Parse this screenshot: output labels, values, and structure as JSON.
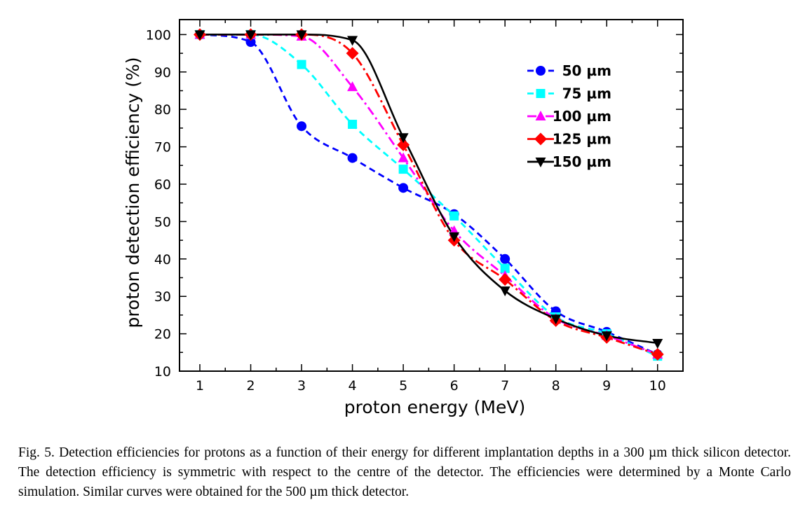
{
  "chart_data": {
    "type": "line",
    "xlabel": "proton energy (MeV)",
    "ylabel": "proton detection efficiency (%)",
    "xlim": [
      0.6,
      10.5
    ],
    "ylim": [
      10,
      104
    ],
    "x_ticks": [
      1,
      2,
      3,
      4,
      5,
      6,
      7,
      8,
      9,
      10
    ],
    "y_ticks": [
      10,
      20,
      30,
      40,
      50,
      60,
      70,
      80,
      90,
      100
    ],
    "legend_position": "top-right",
    "grid": false,
    "x": [
      1,
      2,
      3,
      4,
      5,
      6,
      7,
      8,
      9,
      10
    ],
    "series": [
      {
        "name": "50 µm",
        "color": "#0000ff",
        "marker": "circle",
        "line": "dashed",
        "values": [
          100,
          98,
          75.5,
          67,
          59,
          52,
          40,
          26,
          20.5,
          14.5
        ]
      },
      {
        "name": "75 µm",
        "color": "#00ffff",
        "marker": "square",
        "line": "dashed",
        "values": [
          100,
          100,
          92,
          76,
          64,
          51.5,
          37.5,
          24.5,
          20,
          14
        ]
      },
      {
        "name": "100 µm",
        "color": "#ff00ff",
        "marker": "triangle-up",
        "line": "dash-dot",
        "values": [
          100,
          100,
          99.5,
          86,
          67,
          47.5,
          35.5,
          24,
          19.5,
          14.5
        ]
      },
      {
        "name": "125 µm",
        "color": "#ff0000",
        "marker": "diamond",
        "line": "dash-dot",
        "values": [
          100,
          100,
          100,
          95,
          70.5,
          45,
          34.5,
          23.5,
          19,
          14.5
        ]
      },
      {
        "name": "150 µm",
        "color": "#000000",
        "marker": "triangle-down",
        "line": "solid",
        "values": [
          100,
          100,
          100,
          98.5,
          72.5,
          46,
          31.5,
          24,
          19.5,
          17.5
        ]
      }
    ]
  },
  "caption": "Fig. 5. Detection efficiencies for protons as a function of their energy for different implantation depths in a 300 µm thick silicon detector. The detection efficiency is symmetric with respect to the centre of the detector. The efficiencies were determined by a Monte Carlo simulation. Similar curves were obtained for the 500 µm thick detector."
}
